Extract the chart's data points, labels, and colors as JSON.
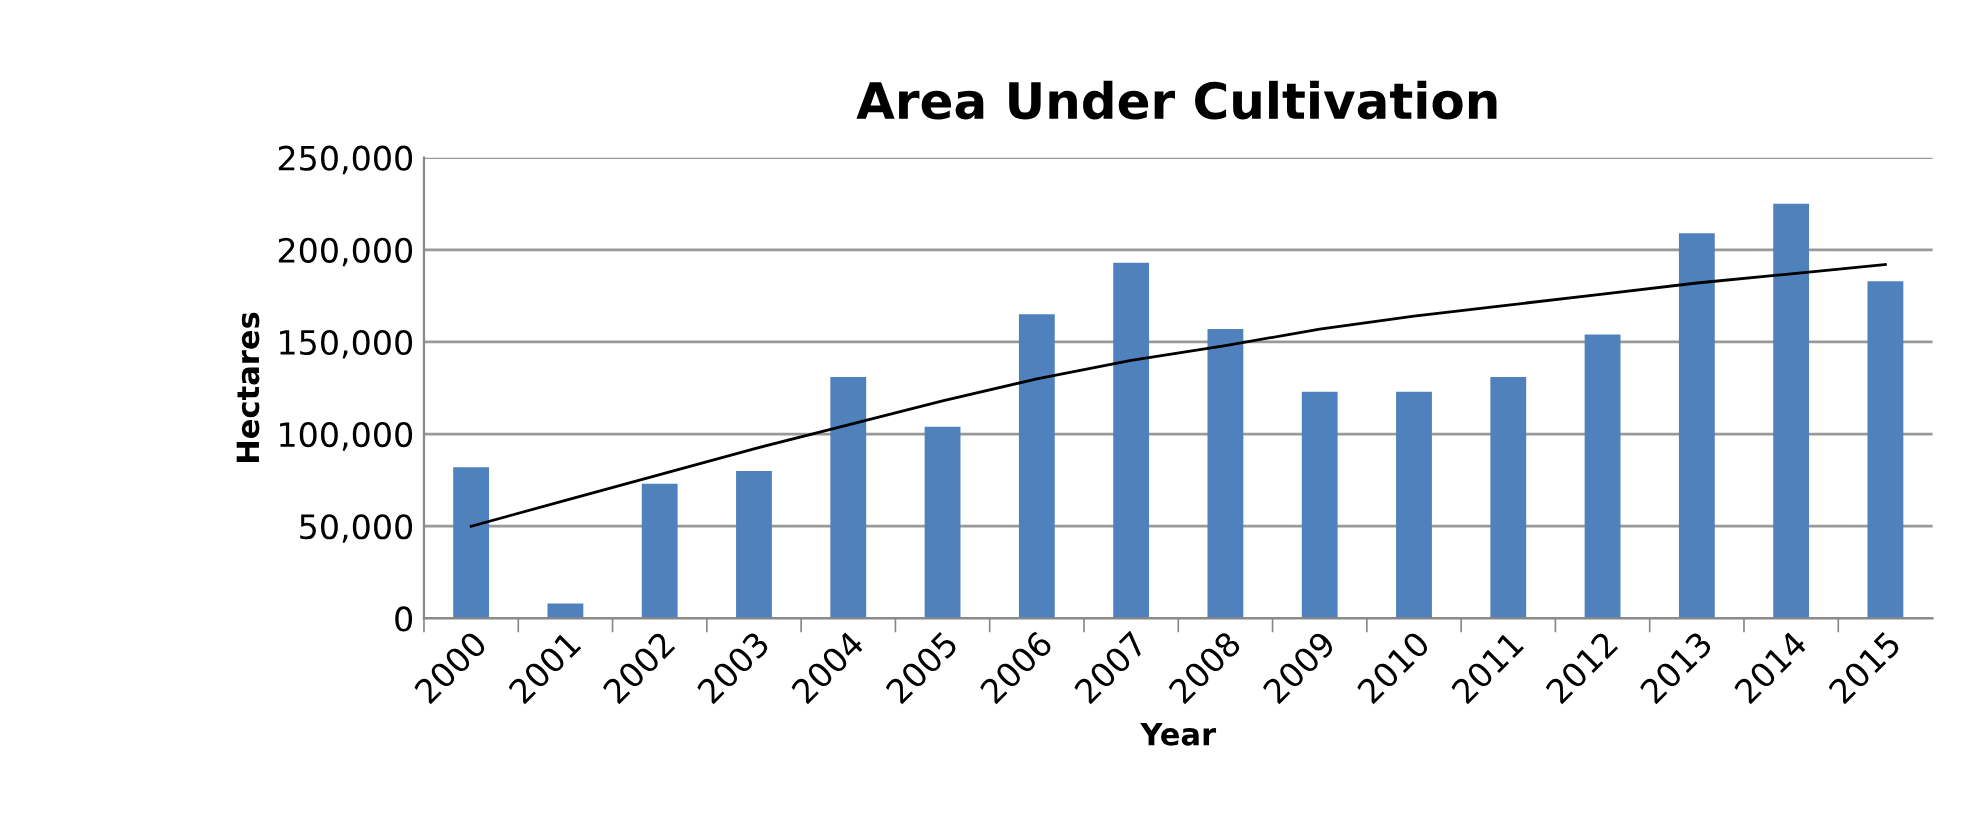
{
  "chart_data": {
    "type": "bar",
    "title": "Area Under Cultivation",
    "xlabel": "Year",
    "ylabel": "Hectares",
    "categories": [
      "2000",
      "2001",
      "2002",
      "2003",
      "2004",
      "2005",
      "2006",
      "2007",
      "2008",
      "2009",
      "2010",
      "2011",
      "2012",
      "2013",
      "2014",
      "2015"
    ],
    "series": [
      {
        "color": "#4f81bd",
        "values": [
          82000,
          8000,
          73000,
          80000,
          131000,
          104000,
          165000,
          193000,
          157000,
          123000,
          123000,
          131000,
          154000,
          209000,
          225000,
          183000
        ]
      },
      {
        "type": "line",
        "color": "#000000",
        "values": [
          50000,
          64000,
          78000,
          92000,
          105000,
          118000,
          130000,
          140000,
          148000,
          157000,
          164000,
          170000,
          176000,
          182000,
          187000,
          192000
        ]
      }
    ],
    "ylim": [
      0,
      250000
    ],
    "yticks": [
      0,
      {
        "value": 50000,
        "label": "50,000"
      },
      {
        "value": 100000,
        "label": "100,000"
      },
      {
        "value": 150000,
        "label": "150,000"
      },
      {
        "value": 200000,
        "label": "200,000"
      },
      {
        "value": 250000,
        "label": "250,000"
      }
    ],
    "grid": "y",
    "legend": false
  }
}
